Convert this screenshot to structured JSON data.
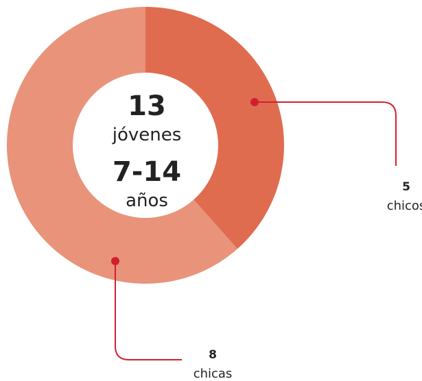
{
  "chart_data": {
    "type": "donut",
    "categories": [
      "chicos",
      "chicas"
    ],
    "values": [
      5,
      8
    ],
    "colors": [
      "#e06c50",
      "#e8937a"
    ],
    "center_text": [
      "13",
      "jóvenes",
      "7-14",
      "años"
    ],
    "leader_color": "#d0202e"
  }
}
